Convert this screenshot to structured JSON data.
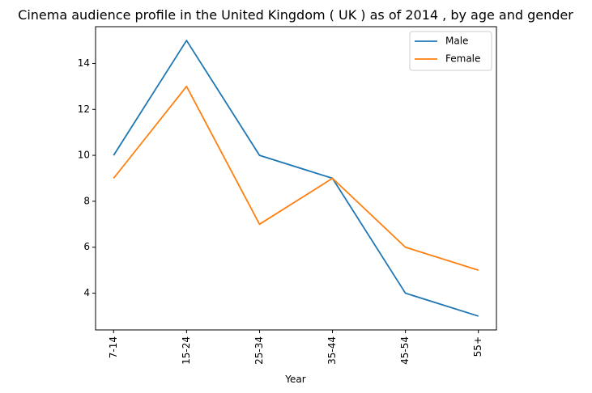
{
  "chart_data": {
    "type": "line",
    "title": "Cinema audience profile in the United Kingdom ( UK ) as of 2014 , by age and gender",
    "xlabel": "Year",
    "ylabel": "",
    "categories": [
      "7-14",
      "15-24",
      "25-34",
      "35-44",
      "45-54",
      "55+"
    ],
    "series": [
      {
        "name": "Male",
        "color": "#1f77b4",
        "values": [
          10,
          15,
          10,
          9,
          4,
          3
        ]
      },
      {
        "name": "Female",
        "color": "#ff7f0e",
        "values": [
          9,
          13,
          7,
          9,
          6,
          5
        ]
      }
    ],
    "ylim": [
      2.4,
      15.6
    ],
    "yticks": [
      4,
      6,
      8,
      10,
      12,
      14
    ],
    "grid": false,
    "legend_position": "top-right"
  }
}
